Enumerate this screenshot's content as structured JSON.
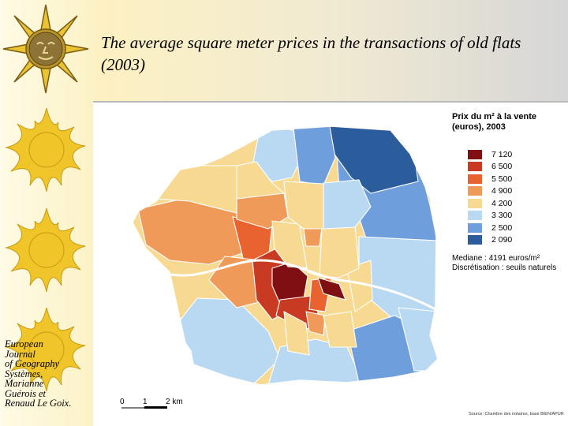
{
  "slide": {
    "title": "The average square meter prices in the transactions of old flats (2003)",
    "credit_lines": [
      "European",
      "Journal",
      "of Geography",
      "Systèmes,",
      "Marianne",
      "Guérois et",
      "Renaud Le Goix."
    ]
  },
  "map": {
    "legend": {
      "title": "Prix du m² à la vente (euros), 2003",
      "classes": [
        {
          "value": "7 120",
          "color": "#7f0f12"
        },
        {
          "value": "6 500",
          "color": "#c83a22"
        },
        {
          "value": "5 500",
          "color": "#e8632f"
        },
        {
          "value": "4 900",
          "color": "#f09a59"
        },
        {
          "value": "4 200",
          "color": "#f7d992"
        },
        {
          "value": "3 300",
          "color": "#b9d8f2"
        },
        {
          "value": "2 500",
          "color": "#6e9edc"
        },
        {
          "value": "2 090",
          "color": "#2b5d9c"
        }
      ],
      "note_median": "Mediane : 4191 euros/m²",
      "note_method": "Discrétisation : seuils naturels"
    },
    "scale": {
      "labels": [
        "0",
        "1",
        "2 km"
      ]
    },
    "source": "Source: Chambre des notaires, base BIEN/APUR"
  }
}
